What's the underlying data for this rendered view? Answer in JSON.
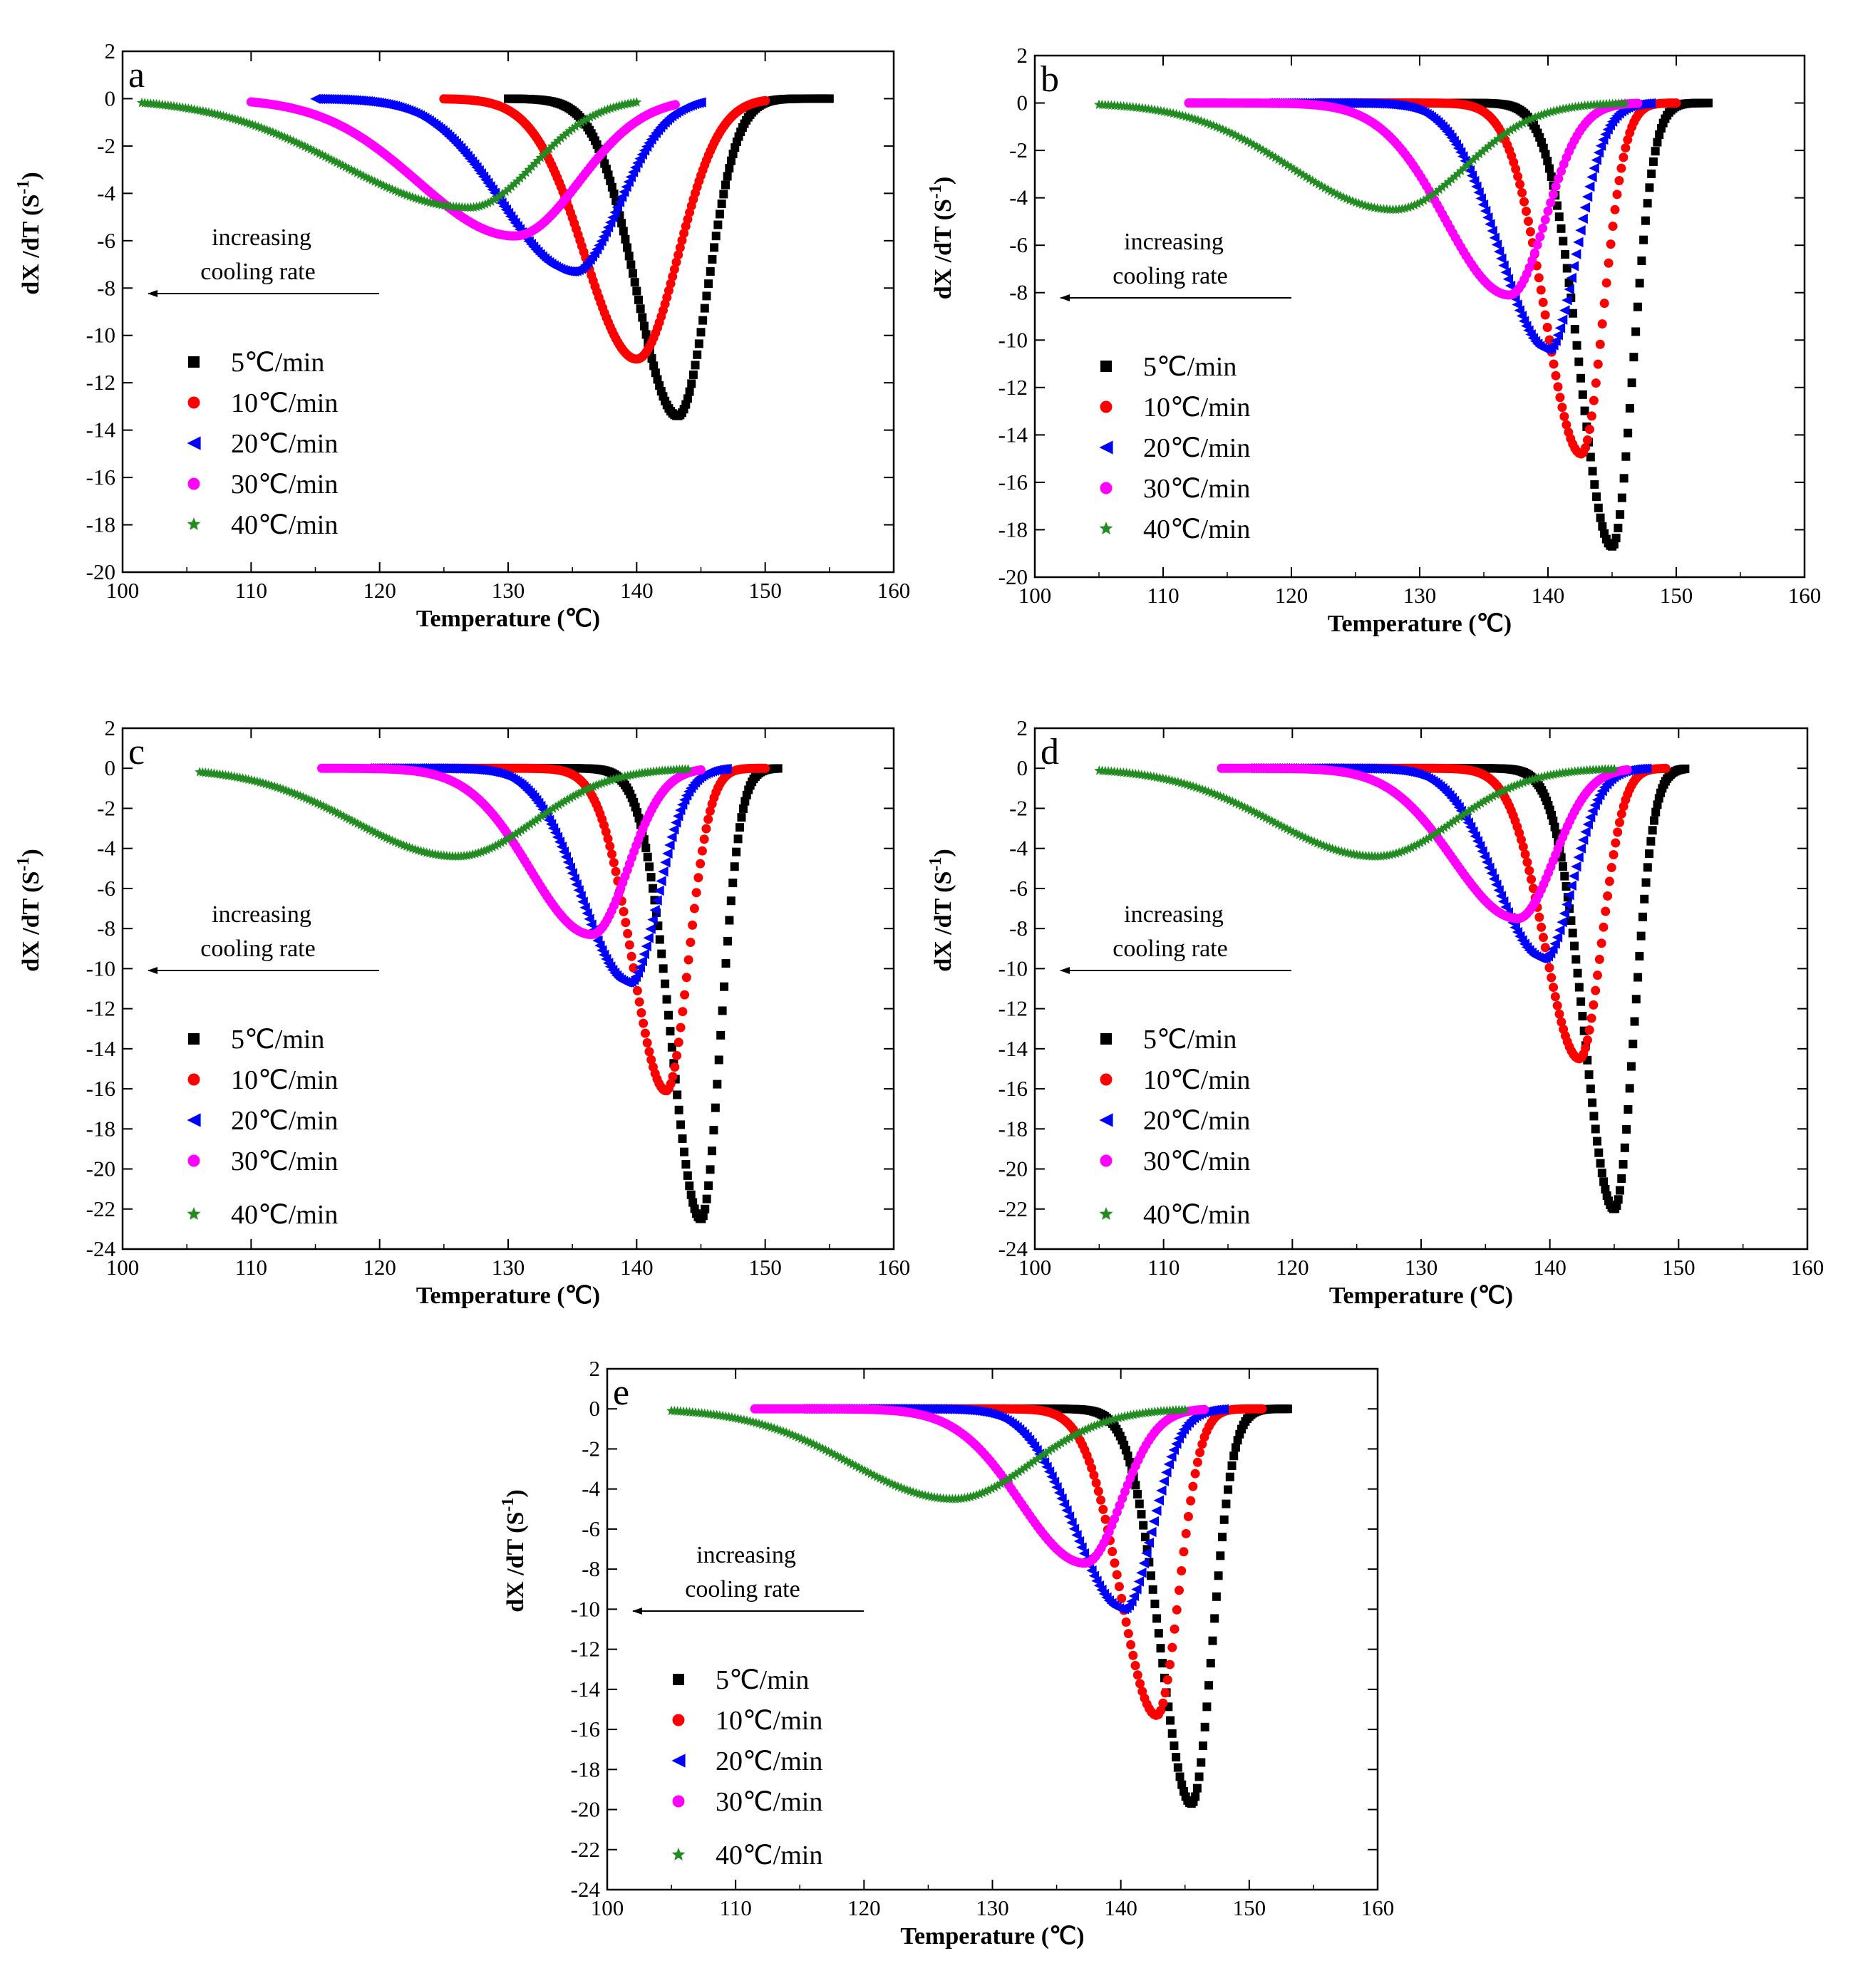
{
  "chart_data": [
    {
      "type": "scatter",
      "panel": "a",
      "xlabel": "Temperature (℃)",
      "ylabel": "dX /dT (S-1)",
      "xlim": [
        100,
        160
      ],
      "ylim": [
        -20,
        2
      ],
      "xticks": [
        100,
        110,
        120,
        130,
        140,
        150,
        160
      ],
      "yticks": [
        2,
        0,
        -2,
        -4,
        -6,
        -8,
        -10,
        -12,
        -14,
        -16,
        -18,
        -20
      ],
      "annotation": [
        "increasing",
        "cooling rate"
      ],
      "series": [
        {
          "name": "5℃/min",
          "color": "#000000",
          "marker": "square",
          "x_start": 130,
          "x_peak": 143.2,
          "y_peak": -13.4,
          "x_end": 155,
          "width_left": 3.2,
          "width_right": 2.3
        },
        {
          "name": "10℃/min",
          "color": "#ff0000",
          "marker": "circle",
          "x_start": 125,
          "x_peak": 140,
          "y_peak": -11.0,
          "x_end": 150,
          "width_left": 4.0,
          "width_right": 3.2
        },
        {
          "name": "20℃/min",
          "color": "#0000ff",
          "marker": "triangle-left",
          "x_start": 115,
          "x_peak": 135,
          "y_peak": -7.3,
          "x_end": 145,
          "width_left": 5.5,
          "width_right": 3.6
        },
        {
          "name": "30℃/min",
          "color": "#ff00ff",
          "marker": "circle",
          "x_start": 110,
          "x_peak": 130.5,
          "y_peak": -5.8,
          "x_end": 143,
          "width_left": 7.5,
          "width_right": 5.0
        },
        {
          "name": "40℃/min",
          "color": "#228b22",
          "marker": "star",
          "x_start": 101.5,
          "x_peak": 127,
          "y_peak": -4.6,
          "x_end": 140,
          "width_left": 10.0,
          "width_right": 5.0
        }
      ]
    },
    {
      "type": "scatter",
      "panel": "b",
      "xlabel": "Temperature (℃)",
      "ylabel": "dX /dT (S-1)",
      "xlim": [
        100,
        160
      ],
      "ylim": [
        -20,
        2
      ],
      "xticks": [
        100,
        110,
        120,
        130,
        140,
        150,
        160
      ],
      "yticks": [
        2,
        0,
        -2,
        -4,
        -6,
        -8,
        -10,
        -12,
        -14,
        -16,
        -18,
        -20
      ],
      "annotation": [
        "increasing",
        "cooling rate"
      ],
      "series": [
        {
          "name": "5℃/min",
          "color": "#000000",
          "marker": "square",
          "x_start": 126.5,
          "x_peak": 145,
          "y_peak": -18.7,
          "x_end": 152.5,
          "width_left": 2.5,
          "width_right": 1.6
        },
        {
          "name": "10℃/min",
          "color": "#ff0000",
          "marker": "circle",
          "x_start": 122,
          "x_peak": 142.6,
          "y_peak": -14.8,
          "x_end": 150,
          "width_left": 2.8,
          "width_right": 1.7
        },
        {
          "name": "20℃/min",
          "color": "#0000ff",
          "marker": "triangle-left",
          "x_start": 118,
          "x_peak": 140,
          "y_peak": -10.4,
          "x_end": 148,
          "width_left": 3.8,
          "width_right": 2.2
        },
        {
          "name": "30℃/min",
          "color": "#ff00ff",
          "marker": "circle",
          "x_start": 112,
          "x_peak": 137,
          "y_peak": -8.1,
          "x_end": 147,
          "width_left": 5.0,
          "width_right": 2.8
        },
        {
          "name": "40℃/min",
          "color": "#228b22",
          "marker": "star",
          "x_start": 105,
          "x_peak": 128,
          "y_peak": -4.5,
          "x_end": 146,
          "width_left": 8.0,
          "width_right": 5.5
        }
      ]
    },
    {
      "type": "scatter",
      "panel": "c",
      "xlabel": "Temperature (℃)",
      "ylabel": "dX /dT (S-1)",
      "xlim": [
        100,
        160
      ],
      "ylim": [
        -24,
        2
      ],
      "xticks": [
        100,
        110,
        120,
        130,
        140,
        150,
        160
      ],
      "yticks": [
        2,
        0,
        -2,
        -4,
        -6,
        -8,
        -10,
        -12,
        -14,
        -16,
        -18,
        -20,
        -22,
        -24
      ],
      "annotation": [
        "increasing",
        "cooling rate"
      ],
      "series": [
        {
          "name": "5℃/min",
          "color": "#000000",
          "marker": "square",
          "x_start": 128,
          "x_peak": 145,
          "y_peak": -22.5,
          "x_end": 151,
          "width_left": 2.3,
          "width_right": 1.5
        },
        {
          "name": "10℃/min",
          "color": "#ff0000",
          "marker": "circle",
          "x_start": 124,
          "x_peak": 142.3,
          "y_peak": -16.1,
          "x_end": 150,
          "width_left": 2.6,
          "width_right": 1.7
        },
        {
          "name": "20℃/min",
          "color": "#0000ff",
          "marker": "triangle-left",
          "x_start": 119,
          "x_peak": 139.4,
          "y_peak": -10.7,
          "x_end": 147,
          "width_left": 3.7,
          "width_right": 2.2
        },
        {
          "name": "30℃/min",
          "color": "#ff00ff",
          "marker": "circle",
          "x_start": 115.5,
          "x_peak": 136.5,
          "y_peak": -8.3,
          "x_end": 145,
          "width_left": 4.8,
          "width_right": 2.8
        },
        {
          "name": "40℃/min",
          "color": "#228b22",
          "marker": "star",
          "x_start": 106,
          "x_peak": 126,
          "y_peak": -4.4,
          "x_end": 144,
          "width_left": 8.0,
          "width_right": 6.0
        }
      ]
    },
    {
      "type": "scatter",
      "panel": "d",
      "xlabel": "Temperature (℃)",
      "ylabel": "dX /dT (S-1)",
      "xlim": [
        100,
        160
      ],
      "ylim": [
        -24,
        2
      ],
      "xticks": [
        100,
        110,
        120,
        130,
        140,
        150,
        160
      ],
      "yticks": [
        2,
        0,
        -2,
        -4,
        -6,
        -8,
        -10,
        -12,
        -14,
        -16,
        -18,
        -20,
        -22,
        -24
      ],
      "annotation": [
        "increasing",
        "cooling rate"
      ],
      "series": [
        {
          "name": "5℃/min",
          "color": "#000000",
          "marker": "square",
          "x_start": 129,
          "x_peak": 145,
          "y_peak": -22.0,
          "x_end": 150.5,
          "width_left": 2.3,
          "width_right": 1.5
        },
        {
          "name": "10℃/min",
          "color": "#ff0000",
          "marker": "circle",
          "x_start": 122.5,
          "x_peak": 142.3,
          "y_peak": -14.5,
          "x_end": 149,
          "width_left": 2.7,
          "width_right": 1.7
        },
        {
          "name": "20℃/min",
          "color": "#0000ff",
          "marker": "triangle-left",
          "x_start": 116.5,
          "x_peak": 139.5,
          "y_peak": -9.5,
          "x_end": 147.5,
          "width_left": 3.7,
          "width_right": 2.2
        },
        {
          "name": "30℃/min",
          "color": "#ff00ff",
          "marker": "circle",
          "x_start": 114.5,
          "x_peak": 137.5,
          "y_peak": -7.5,
          "x_end": 146,
          "width_left": 5.0,
          "width_right": 2.8
        },
        {
          "name": "40℃/min",
          "color": "#228b22",
          "marker": "star",
          "x_start": 105,
          "x_peak": 126.5,
          "y_peak": -4.4,
          "x_end": 145,
          "width_left": 8.0,
          "width_right": 6.0
        }
      ]
    },
    {
      "type": "scatter",
      "panel": "e",
      "xlabel": "Temperature (℃)",
      "ylabel": "dX /dT (S-1)",
      "xlim": [
        100,
        160
      ],
      "ylim": [
        -24,
        2
      ],
      "xticks": [
        100,
        110,
        120,
        130,
        140,
        150,
        160
      ],
      "yticks": [
        2,
        0,
        -2,
        -4,
        -6,
        -8,
        -10,
        -12,
        -14,
        -16,
        -18,
        -20,
        -22,
        -24
      ],
      "annotation": [
        "increasing",
        "cooling rate"
      ],
      "series": [
        {
          "name": "5℃/min",
          "color": "#000000",
          "marker": "square",
          "x_start": 127.5,
          "x_peak": 145.5,
          "y_peak": -19.7,
          "x_end": 153,
          "width_left": 2.4,
          "width_right": 1.6
        },
        {
          "name": "10℃/min",
          "color": "#ff0000",
          "marker": "circle",
          "x_start": 120.5,
          "x_peak": 142.8,
          "y_peak": -15.3,
          "x_end": 151,
          "width_left": 2.8,
          "width_right": 1.7
        },
        {
          "name": "20℃/min",
          "color": "#0000ff",
          "marker": "triangle-left",
          "x_start": 115,
          "x_peak": 140.2,
          "y_peak": -10.0,
          "x_end": 148,
          "width_left": 3.8,
          "width_right": 2.2
        },
        {
          "name": "30℃/min",
          "color": "#ff00ff",
          "marker": "circle",
          "x_start": 111.5,
          "x_peak": 137.2,
          "y_peak": -7.7,
          "x_end": 146.5,
          "width_left": 5.0,
          "width_right": 2.8
        },
        {
          "name": "40℃/min",
          "color": "#228b22",
          "marker": "star",
          "x_start": 105,
          "x_peak": 127,
          "y_peak": -4.5,
          "x_end": 145,
          "width_left": 8.0,
          "width_right": 6.0
        }
      ]
    }
  ]
}
